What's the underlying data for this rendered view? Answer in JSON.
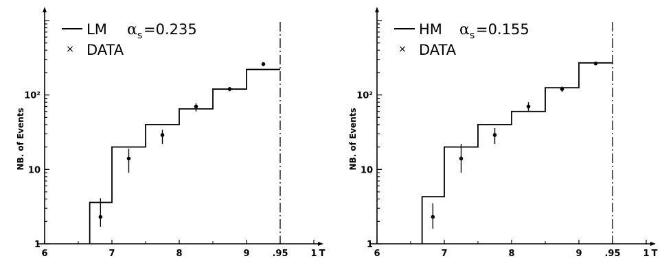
{
  "chart_data": [
    {
      "type": "step",
      "ylabel": "NB. of Events",
      "xlabel": "T",
      "xlim": [
        0.6,
        1.0
      ],
      "ylim": [
        1,
        1000
      ],
      "yscale": "log",
      "x_ticks": [
        "6",
        "7",
        "8",
        "9",
        ".95",
        "1"
      ],
      "x_tick_values": [
        0.6,
        0.7,
        0.8,
        0.9,
        0.95,
        1.0
      ],
      "y_ticks": [
        "1",
        "10",
        "10²"
      ],
      "y_tick_values": [
        1,
        10,
        100
      ],
      "cut_line": 0.95,
      "legend": {
        "model": "LM",
        "alpha_symbol": "α",
        "alpha_sub": "s",
        "alpha_value": "=0.235",
        "data_marker": "×",
        "data_label": "DATA"
      },
      "series": [
        {
          "name": "LM",
          "kind": "histogram",
          "bin_edges": [
            0.667,
            0.7,
            0.75,
            0.8,
            0.85,
            0.9,
            0.95
          ],
          "values": [
            3.6,
            20,
            40,
            65,
            120,
            220
          ]
        },
        {
          "name": "DATA",
          "kind": "points",
          "x": [
            0.683,
            0.725,
            0.775,
            0.825,
            0.875,
            0.925
          ],
          "y": [
            2.3,
            14,
            29,
            70,
            120,
            260
          ],
          "err_lo": [
            1.7,
            9,
            22,
            60,
            112,
            250
          ],
          "err_hi": [
            4.1,
            19,
            34,
            77,
            128,
            270
          ]
        }
      ]
    },
    {
      "type": "step",
      "ylabel": "NB. of Events",
      "xlabel": "T",
      "xlim": [
        0.6,
        1.0
      ],
      "ylim": [
        1,
        1000
      ],
      "yscale": "log",
      "x_ticks": [
        "6",
        "7",
        "8",
        "9",
        ".95",
        "1"
      ],
      "x_tick_values": [
        0.6,
        0.7,
        0.8,
        0.9,
        0.95,
        1.0
      ],
      "y_ticks": [
        "1",
        "10",
        "10²"
      ],
      "y_tick_values": [
        1,
        10,
        100
      ],
      "cut_line": 0.95,
      "legend": {
        "model": "HM",
        "alpha_symbol": "α",
        "alpha_sub": "s",
        "alpha_value": "=0.155",
        "data_marker": "×",
        "data_label": "DATA"
      },
      "series": [
        {
          "name": "HM",
          "kind": "histogram",
          "bin_edges": [
            0.667,
            0.683,
            0.7,
            0.75,
            0.8,
            0.85,
            0.9,
            0.95
          ],
          "values": [
            4.3,
            4.3,
            20,
            40,
            60,
            125,
            270
          ]
        },
        {
          "name": "DATA",
          "kind": "points",
          "x": [
            0.683,
            0.725,
            0.775,
            0.825,
            0.875,
            0.925
          ],
          "y": [
            2.3,
            14,
            29,
            70,
            120,
            265
          ],
          "err_lo": [
            1.6,
            9,
            22,
            60,
            110,
            255
          ],
          "err_hi": [
            3.5,
            22,
            36,
            80,
            130,
            275
          ]
        }
      ]
    }
  ]
}
